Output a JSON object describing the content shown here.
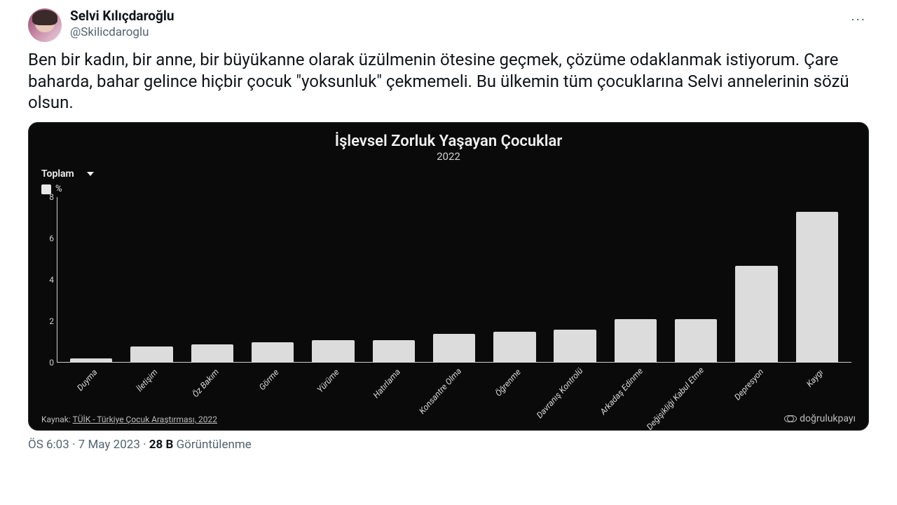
{
  "tweet": {
    "display_name": "Selvi Kılıçdaroğlu",
    "handle": "@Skilicdaroglu",
    "text": "Ben bir kadın, bir anne, bir büyükanne olarak üzülmenin ötesine geçmek, çözüme odaklanmak istiyorum. Çare baharda, bahar gelince hiçbir çocuk \"yoksunluk\" çekmemeli. Bu ülkemin tüm çocuklarına Selvi annelerinin sözü olsun.",
    "time": "ÖS 6:03",
    "date": "7 May 2023",
    "views_count": "28 B",
    "views_label": "Görüntülenme",
    "more_label": "···"
  },
  "chart": {
    "type": "bar",
    "title": "İşlevsel Zorluk Yaşayan Çocuklar",
    "subtitle": "2022",
    "dropdown_label": "Toplam",
    "legend_label": "%",
    "background_color": "#0a0a0a",
    "bar_color": "#dcdcdc",
    "axis_color": "#cfcfcf",
    "text_color": "#f0f0f0",
    "ylim": [
      0,
      8
    ],
    "yticks": [
      0,
      2,
      4,
      6,
      8
    ],
    "bar_width": 0.7,
    "categories": [
      "Duyma",
      "İletişim",
      "Öz Bakım",
      "Görme",
      "Yürüme",
      "Hatırlama",
      "Konsantre Olma",
      "Öğrenme",
      "Davranış Kontrolü",
      "Arkadaş Edinme",
      "Değişikliği Kabul Etme",
      "Depresyon",
      "Kaygı"
    ],
    "values": [
      0.2,
      0.8,
      0.9,
      1.0,
      1.1,
      1.1,
      1.4,
      1.5,
      1.6,
      2.1,
      2.1,
      4.7,
      7.3
    ],
    "source_prefix": "Kaynak: ",
    "source_link": "TÜİK - Türkiye Çocuk Araştırması, 2022",
    "brand": "doğrulukpayı"
  }
}
